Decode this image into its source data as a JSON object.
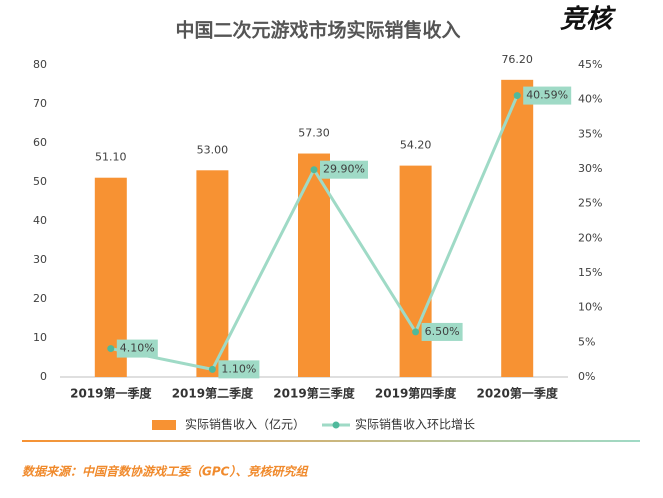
{
  "chart_data": {
    "type": "combo",
    "title": "中国二次元游戏市场实际销售收入",
    "logo": "竞核",
    "source": "数据来源：中国音数协游戏工委（GPC）、竞核研究组",
    "categories": [
      "2019第一季度",
      "2019第二季度",
      "2019第三季度",
      "2019第四季度",
      "2020第一季度"
    ],
    "series": [
      {
        "name": "实际销售收入（亿元）",
        "type": "bar",
        "color": "#f79233",
        "values": [
          51.1,
          53.0,
          57.3,
          54.2,
          76.2
        ],
        "value_labels": [
          "51.10",
          "53.00",
          "57.30",
          "54.20",
          "76.20"
        ]
      },
      {
        "name": "实际销售收入环比增长",
        "type": "line",
        "axis": "y2",
        "color": "#9fdac6",
        "marker_color": "#4fb99c",
        "values": [
          4.1,
          1.1,
          29.9,
          6.5,
          40.59
        ],
        "value_labels": [
          "4.10%",
          "1.10%",
          "29.90%",
          "6.50%",
          "40.59%"
        ]
      }
    ],
    "ylim": [
      0,
      80
    ],
    "yticks": [
      0,
      10,
      20,
      30,
      40,
      50,
      60,
      70,
      80
    ],
    "y2lim": [
      0,
      45
    ],
    "y2ticks": [
      {
        "value": 0,
        "label": "0%"
      },
      {
        "value": 5,
        "label": "5%"
      },
      {
        "value": 10,
        "label": "10%"
      },
      {
        "value": 15,
        "label": "15%"
      },
      {
        "value": 20,
        "label": "20%"
      },
      {
        "value": 25,
        "label": "25%"
      },
      {
        "value": 30,
        "label": "30%"
      },
      {
        "value": 35,
        "label": "35%"
      },
      {
        "value": 40,
        "label": "40%"
      },
      {
        "value": 45,
        "label": "45%"
      }
    ],
    "grid": false
  }
}
